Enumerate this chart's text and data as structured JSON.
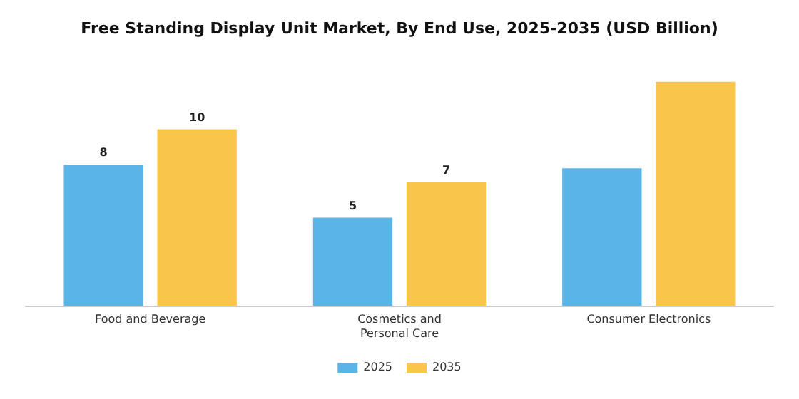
{
  "chart_data": {
    "type": "bar",
    "title": "Free Standing Display Unit Market, By End Use, 2025-2035 (USD Billion)",
    "categories": [
      "Food and Beverage",
      "Cosmetics and Personal Care",
      "Consumer Electronics"
    ],
    "series": [
      {
        "name": "2025",
        "color": "#5ab4e5",
        "values": [
          8,
          5,
          7.8
        ],
        "value_labels": [
          "8",
          "5",
          null
        ]
      },
      {
        "name": "2035",
        "color": "#f9c54a",
        "values": [
          10,
          7,
          12.7
        ],
        "value_labels": [
          "10",
          "7",
          null
        ]
      }
    ],
    "tick_labels": "x",
    "grid": false,
    "legend": "bottom"
  }
}
